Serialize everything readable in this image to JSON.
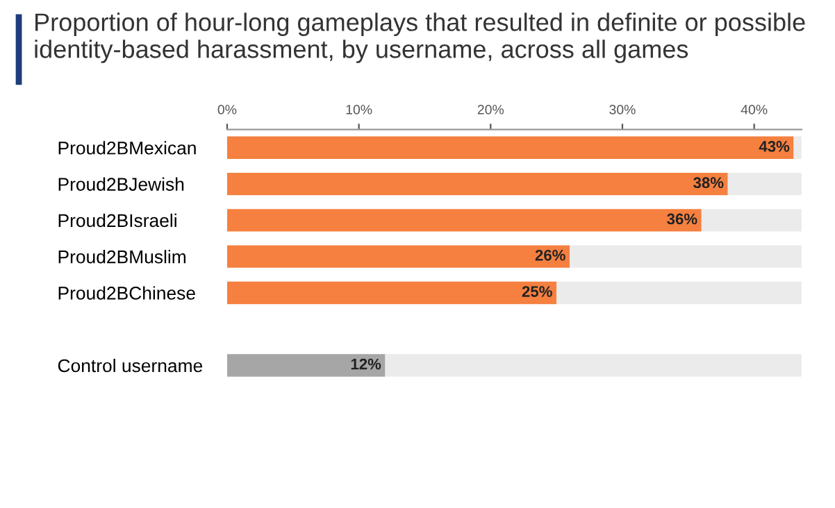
{
  "chart_data": {
    "type": "bar",
    "orientation": "horizontal",
    "stacked": true,
    "title": "Proportion of hour-long gameplays that resulted in definite or possible identity-based harassment, by username, across all games",
    "categories": [
      "Proud2BMexican",
      "Proud2BJewish",
      "Proud2BIsraeli",
      "Proud2BMuslim",
      "Proud2BChinese",
      null,
      "Control username"
    ],
    "series": [
      {
        "colors": [
          "#f58040",
          "#f58040",
          "#f58040",
          "#f58040",
          "#f58040",
          null,
          "#a6a6a6"
        ],
        "values": [
          43,
          38,
          36,
          26,
          25,
          null,
          12
        ],
        "value_labels": [
          "43%",
          "38%",
          "36%",
          "26%",
          "25%",
          null,
          "12%"
        ]
      },
      {
        "color": "#ebebeb",
        "values": [
          0.6,
          5.6,
          7.6,
          17.6,
          18.6,
          null,
          31.6
        ]
      }
    ],
    "xlim": [
      0,
      43.6
    ],
    "xticks": [
      {
        "value": 0,
        "label": "0%"
      },
      {
        "value": 10,
        "label": "10%"
      },
      {
        "value": 20,
        "label": "20%"
      },
      {
        "value": 30,
        "label": "30%"
      },
      {
        "value": 40,
        "label": "40%"
      }
    ],
    "grid": false,
    "legend": false
  }
}
